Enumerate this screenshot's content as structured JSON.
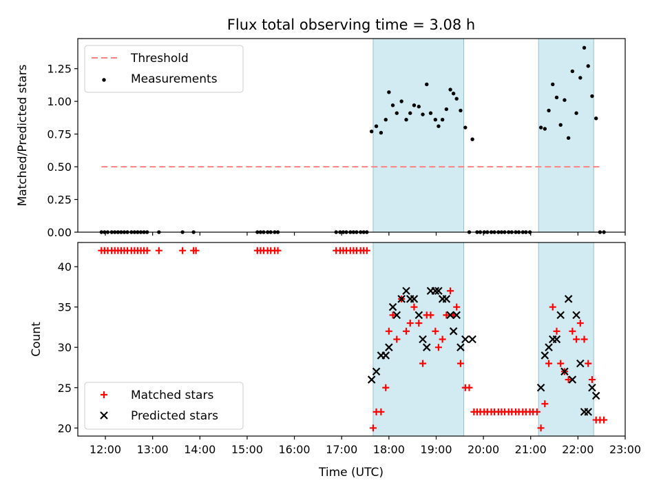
{
  "chart_data": {
    "title": "Flux total observing time = 3.08 h",
    "xlabel": "Time (UTC)",
    "x_range": [
      "11:25",
      "23:00"
    ],
    "x_ticks": [
      "12:00",
      "13:00",
      "14:00",
      "15:00",
      "16:00",
      "17:00",
      "18:00",
      "19:00",
      "20:00",
      "21:00",
      "22:00",
      "23:00"
    ],
    "shaded_intervals": [
      [
        "17:40",
        "19:35"
      ],
      [
        "21:10",
        "22:20"
      ]
    ],
    "shade_color": "#add8e6",
    "panels": [
      {
        "type": "scatter",
        "ylabel": "Matched/Predicted stars",
        "ylim": [
          0,
          1.48
        ],
        "y_ticks": [
          "0.00",
          "0.25",
          "0.50",
          "0.75",
          "1.00",
          "1.25"
        ],
        "legend_position": "upper-left",
        "series": [
          {
            "name": "Threshold",
            "kind": "dashed-line",
            "color": "#ff8080",
            "x": [
              "11:55",
              "22:28"
            ],
            "y": [
              0.5,
              0.5
            ]
          },
          {
            "name": "Measurements",
            "kind": "dots",
            "color": "#000000",
            "points": [
              [
                "11:55",
                0
              ],
              [
                "11:59",
                0
              ],
              [
                "12:03",
                0
              ],
              [
                "12:08",
                0
              ],
              [
                "12:12",
                0
              ],
              [
                "12:16",
                0
              ],
              [
                "12:20",
                0
              ],
              [
                "12:24",
                0
              ],
              [
                "12:28",
                0
              ],
              [
                "12:33",
                0
              ],
              [
                "12:37",
                0
              ],
              [
                "12:41",
                0
              ],
              [
                "12:45",
                0
              ],
              [
                "12:49",
                0
              ],
              [
                "12:53",
                0
              ],
              [
                "13:08",
                0
              ],
              [
                "13:38",
                0
              ],
              [
                "13:52",
                0
              ],
              [
                "15:13",
                0
              ],
              [
                "15:17",
                0
              ],
              [
                "15:21",
                0
              ],
              [
                "15:26",
                0
              ],
              [
                "15:30",
                0
              ],
              [
                "15:35",
                0
              ],
              [
                "15:39",
                0
              ],
              [
                "16:53",
                0
              ],
              [
                "16:58",
                0
              ],
              [
                "17:02",
                0
              ],
              [
                "17:06",
                0
              ],
              [
                "17:11",
                0
              ],
              [
                "17:15",
                0
              ],
              [
                "17:19",
                0
              ],
              [
                "17:24",
                0
              ],
              [
                "17:28",
                0
              ],
              [
                "17:32",
                0
              ],
              [
                "17:38",
                0.77
              ],
              [
                "17:44",
                0.81
              ],
              [
                "17:50",
                0.76
              ],
              [
                "17:56",
                0.86
              ],
              [
                "18:00",
                1.07
              ],
              [
                "18:05",
                0.97
              ],
              [
                "18:10",
                0.91
              ],
              [
                "18:16",
                1.0
              ],
              [
                "18:22",
                0.86
              ],
              [
                "18:27",
                0.91
              ],
              [
                "18:32",
                0.97
              ],
              [
                "18:38",
                0.96
              ],
              [
                "18:43",
                0.9
              ],
              [
                "18:48",
                1.13
              ],
              [
                "18:53",
                0.91
              ],
              [
                "18:59",
                0.86
              ],
              [
                "19:03",
                0.81
              ],
              [
                "19:08",
                0.86
              ],
              [
                "19:13",
                0.94
              ],
              [
                "19:18",
                1.09
              ],
              [
                "19:22",
                1.06
              ],
              [
                "19:26",
                1.02
              ],
              [
                "19:31",
                0.93
              ],
              [
                "19:37",
                0.8
              ],
              [
                "19:46",
                0.71
              ],
              [
                "19:42",
                0
              ],
              [
                "19:52",
                0
              ],
              [
                "19:56",
                0
              ],
              [
                "20:01",
                0
              ],
              [
                "20:05",
                0
              ],
              [
                "20:10",
                0
              ],
              [
                "20:14",
                0
              ],
              [
                "20:19",
                0
              ],
              [
                "20:23",
                0
              ],
              [
                "20:27",
                0
              ],
              [
                "20:32",
                0
              ],
              [
                "20:36",
                0
              ],
              [
                "20:41",
                0
              ],
              [
                "20:45",
                0
              ],
              [
                "20:50",
                0
              ],
              [
                "20:54",
                0
              ],
              [
                "20:59",
                0
              ],
              [
                "21:13",
                0.8
              ],
              [
                "21:18",
                0.79
              ],
              [
                "21:23",
                0.93
              ],
              [
                "21:28",
                1.13
              ],
              [
                "21:33",
                1.03
              ],
              [
                "21:38",
                0.82
              ],
              [
                "21:43",
                1.01
              ],
              [
                "21:48",
                0.72
              ],
              [
                "21:53",
                1.23
              ],
              [
                "21:58",
                0.91
              ],
              [
                "22:03",
                1.18
              ],
              [
                "22:08",
                1.41
              ],
              [
                "22:13",
                1.27
              ],
              [
                "22:18",
                1.04
              ],
              [
                "22:23",
                0.87
              ],
              [
                "22:28",
                0
              ],
              [
                "22:33",
                0
              ]
            ]
          }
        ]
      },
      {
        "type": "scatter",
        "ylabel": "Count",
        "ylim": [
          19,
          43
        ],
        "y_ticks": [
          "20",
          "25",
          "30",
          "35",
          "40"
        ],
        "legend_position": "lower-left",
        "series": [
          {
            "name": "Matched stars",
            "kind": "plus",
            "color": "#ff0000",
            "points": [
              [
                "11:55",
                42
              ],
              [
                "11:59",
                42
              ],
              [
                "12:03",
                42
              ],
              [
                "12:08",
                42
              ],
              [
                "12:12",
                42
              ],
              [
                "12:16",
                42
              ],
              [
                "12:20",
                42
              ],
              [
                "12:24",
                42
              ],
              [
                "12:28",
                42
              ],
              [
                "12:33",
                42
              ],
              [
                "12:37",
                42
              ],
              [
                "12:41",
                42
              ],
              [
                "12:45",
                42
              ],
              [
                "12:49",
                42
              ],
              [
                "12:53",
                42
              ],
              [
                "13:08",
                42
              ],
              [
                "13:38",
                42
              ],
              [
                "13:52",
                42
              ],
              [
                "13:55",
                42
              ],
              [
                "15:13",
                42
              ],
              [
                "15:17",
                42
              ],
              [
                "15:21",
                42
              ],
              [
                "15:26",
                42
              ],
              [
                "15:30",
                42
              ],
              [
                "15:35",
                42
              ],
              [
                "15:39",
                42
              ],
              [
                "16:53",
                42
              ],
              [
                "16:58",
                42
              ],
              [
                "17:02",
                42
              ],
              [
                "17:06",
                42
              ],
              [
                "17:11",
                42
              ],
              [
                "17:15",
                42
              ],
              [
                "17:19",
                42
              ],
              [
                "17:24",
                42
              ],
              [
                "17:28",
                42
              ],
              [
                "17:32",
                42
              ],
              [
                "17:40",
                20
              ],
              [
                "17:44",
                22
              ],
              [
                "17:50",
                22
              ],
              [
                "17:56",
                25
              ],
              [
                "18:00",
                32
              ],
              [
                "18:05",
                34
              ],
              [
                "18:10",
                31
              ],
              [
                "18:16",
                36
              ],
              [
                "18:22",
                32
              ],
              [
                "18:27",
                33
              ],
              [
                "18:32",
                35
              ],
              [
                "18:38",
                33
              ],
              [
                "18:43",
                28
              ],
              [
                "18:48",
                34
              ],
              [
                "18:53",
                34
              ],
              [
                "18:59",
                32
              ],
              [
                "19:03",
                30
              ],
              [
                "19:08",
                31
              ],
              [
                "19:13",
                34
              ],
              [
                "19:18",
                37
              ],
              [
                "19:22",
                34
              ],
              [
                "19:26",
                35
              ],
              [
                "19:31",
                28
              ],
              [
                "19:37",
                25
              ],
              [
                "19:42",
                25
              ],
              [
                "19:48",
                22
              ],
              [
                "19:52",
                22
              ],
              [
                "19:56",
                22
              ],
              [
                "20:01",
                22
              ],
              [
                "20:05",
                22
              ],
              [
                "20:10",
                22
              ],
              [
                "20:14",
                22
              ],
              [
                "20:19",
                22
              ],
              [
                "20:23",
                22
              ],
              [
                "20:27",
                22
              ],
              [
                "20:32",
                22
              ],
              [
                "20:36",
                22
              ],
              [
                "20:41",
                22
              ],
              [
                "20:45",
                22
              ],
              [
                "20:50",
                22
              ],
              [
                "20:54",
                22
              ],
              [
                "20:59",
                22
              ],
              [
                "21:03",
                22
              ],
              [
                "21:08",
                22
              ],
              [
                "21:13",
                20
              ],
              [
                "21:18",
                23
              ],
              [
                "21:23",
                28
              ],
              [
                "21:28",
                35
              ],
              [
                "21:33",
                32
              ],
              [
                "21:38",
                28
              ],
              [
                "21:43",
                27
              ],
              [
                "21:48",
                26
              ],
              [
                "21:53",
                32
              ],
              [
                "21:58",
                31
              ],
              [
                "22:03",
                33
              ],
              [
                "22:08",
                31
              ],
              [
                "22:13",
                28
              ],
              [
                "22:18",
                26
              ],
              [
                "22:23",
                21
              ],
              [
                "22:28",
                21
              ],
              [
                "22:33",
                21
              ]
            ]
          },
          {
            "name": "Predicted stars",
            "kind": "cross",
            "color": "#000000",
            "points": [
              [
                "17:38",
                26
              ],
              [
                "17:44",
                27
              ],
              [
                "17:50",
                29
              ],
              [
                "17:56",
                29
              ],
              [
                "18:00",
                30
              ],
              [
                "18:05",
                35
              ],
              [
                "18:10",
                34
              ],
              [
                "18:16",
                36
              ],
              [
                "18:22",
                37
              ],
              [
                "18:27",
                36
              ],
              [
                "18:32",
                36
              ],
              [
                "18:38",
                34
              ],
              [
                "18:43",
                31
              ],
              [
                "18:48",
                30
              ],
              [
                "18:53",
                37
              ],
              [
                "18:59",
                37
              ],
              [
                "19:03",
                37
              ],
              [
                "19:08",
                36
              ],
              [
                "19:13",
                36
              ],
              [
                "19:18",
                34
              ],
              [
                "19:22",
                32
              ],
              [
                "19:26",
                34
              ],
              [
                "19:31",
                30
              ],
              [
                "19:37",
                31
              ],
              [
                "19:46",
                31
              ],
              [
                "21:13",
                25
              ],
              [
                "21:18",
                29
              ],
              [
                "21:23",
                30
              ],
              [
                "21:28",
                31
              ],
              [
                "21:33",
                31
              ],
              [
                "21:38",
                34
              ],
              [
                "21:43",
                27
              ],
              [
                "21:48",
                36
              ],
              [
                "21:53",
                26
              ],
              [
                "21:58",
                34
              ],
              [
                "22:03",
                28
              ],
              [
                "22:08",
                22
              ],
              [
                "22:13",
                22
              ],
              [
                "22:18",
                25
              ],
              [
                "22:23",
                24
              ]
            ]
          }
        ]
      }
    ]
  }
}
